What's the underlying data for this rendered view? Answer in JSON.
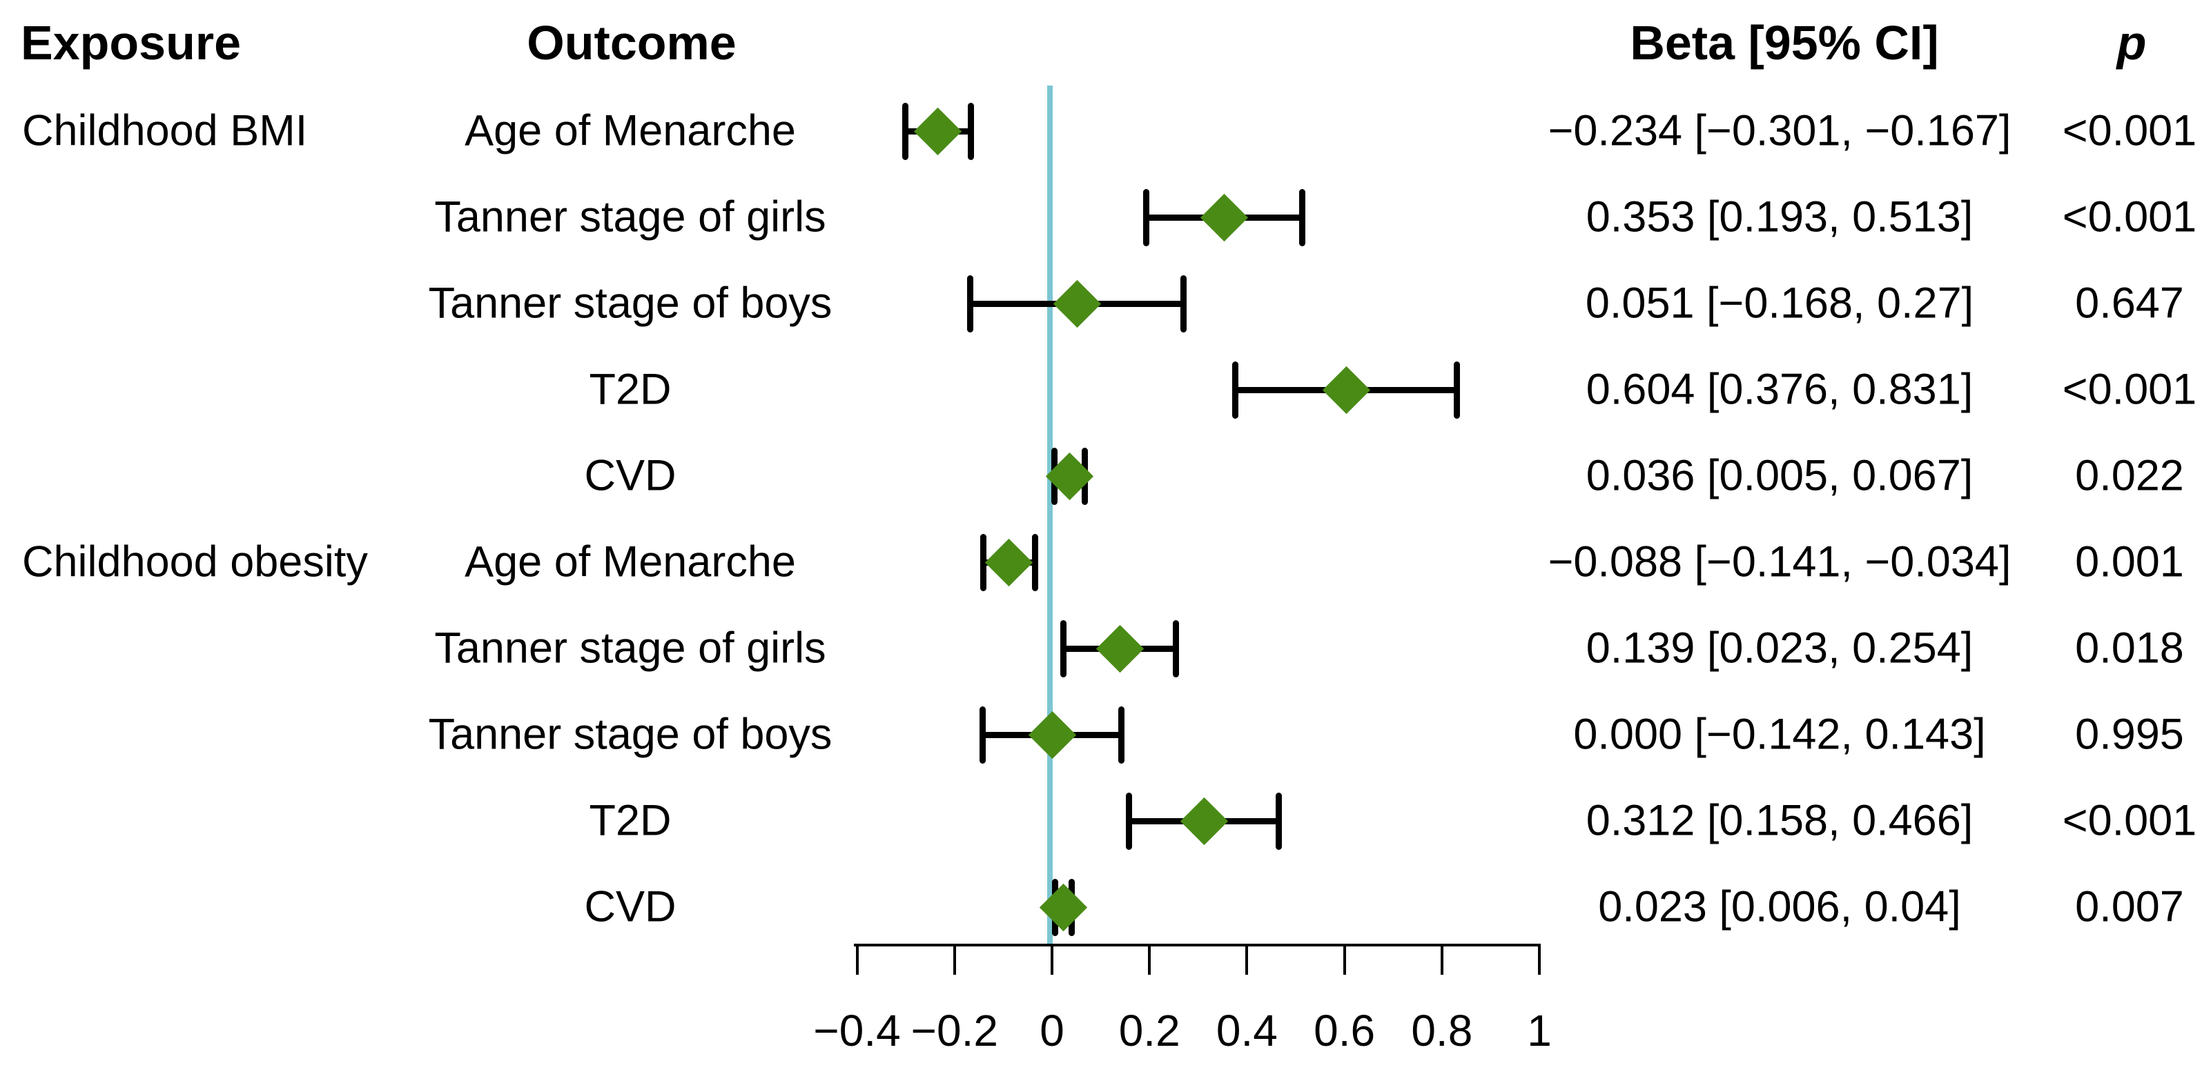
{
  "header": {
    "exposure": "Exposure",
    "outcome": "Outcome",
    "beta": "Beta [95% CI]",
    "p": "p"
  },
  "colors": {
    "marker_green": "#4a8b16",
    "refline_blue": "#7cc6d2",
    "axis_black": "#000000",
    "background": "#ffffff"
  },
  "chart_data": {
    "type": "scatter",
    "subtype": "forest-plot",
    "title": "",
    "xlabel": "",
    "ylabel": "",
    "grid": false,
    "xlim": [
      -0.45,
      1.02
    ],
    "x_ticks": [
      -0.4,
      -0.2,
      0,
      0.2,
      0.4,
      0.6,
      0.8,
      1
    ],
    "x_tick_labels": [
      "−0.4",
      "−0.2",
      "0",
      "0.2",
      "0.4",
      "0.6",
      "0.8",
      "1"
    ],
    "reference_line_x": 0,
    "marker": "diamond",
    "rows": [
      {
        "exposure": "Childhood BMI",
        "outcome": "Age of Menarche",
        "beta": -0.234,
        "ci_low": -0.301,
        "ci_high": -0.167,
        "beta_label": "−0.234 [−0.301, −0.167]",
        "p_label": "<0.001"
      },
      {
        "exposure": "",
        "outcome": "Tanner stage of girls",
        "beta": 0.353,
        "ci_low": 0.193,
        "ci_high": 0.513,
        "beta_label": "0.353 [0.193, 0.513]",
        "p_label": "<0.001"
      },
      {
        "exposure": "",
        "outcome": "Tanner stage of boys",
        "beta": 0.051,
        "ci_low": -0.168,
        "ci_high": 0.27,
        "beta_label": "0.051 [−0.168, 0.27]",
        "p_label": "0.647"
      },
      {
        "exposure": "",
        "outcome": "T2D",
        "beta": 0.604,
        "ci_low": 0.376,
        "ci_high": 0.831,
        "beta_label": "0.604 [0.376, 0.831]",
        "p_label": "<0.001"
      },
      {
        "exposure": "",
        "outcome": "CVD",
        "beta": 0.036,
        "ci_low": 0.005,
        "ci_high": 0.067,
        "beta_label": "0.036 [0.005, 0.067]",
        "p_label": "0.022"
      },
      {
        "exposure": "Childhood obesity",
        "outcome": "Age of Menarche",
        "beta": -0.088,
        "ci_low": -0.141,
        "ci_high": -0.034,
        "beta_label": "−0.088 [−0.141, −0.034]",
        "p_label": "0.001"
      },
      {
        "exposure": "",
        "outcome": "Tanner stage of girls",
        "beta": 0.139,
        "ci_low": 0.023,
        "ci_high": 0.254,
        "beta_label": "0.139 [0.023, 0.254]",
        "p_label": "0.018"
      },
      {
        "exposure": "",
        "outcome": "Tanner stage of boys",
        "beta": 0.0,
        "ci_low": -0.142,
        "ci_high": 0.143,
        "beta_label": "0.000 [−0.142, 0.143]",
        "p_label": "0.995"
      },
      {
        "exposure": "",
        "outcome": "T2D",
        "beta": 0.312,
        "ci_low": 0.158,
        "ci_high": 0.466,
        "beta_label": "0.312 [0.158, 0.466]",
        "p_label": "<0.001"
      },
      {
        "exposure": "",
        "outcome": "CVD",
        "beta": 0.023,
        "ci_low": 0.006,
        "ci_high": 0.04,
        "beta_label": "0.023 [0.006, 0.04]",
        "p_label": "0.007"
      }
    ]
  }
}
